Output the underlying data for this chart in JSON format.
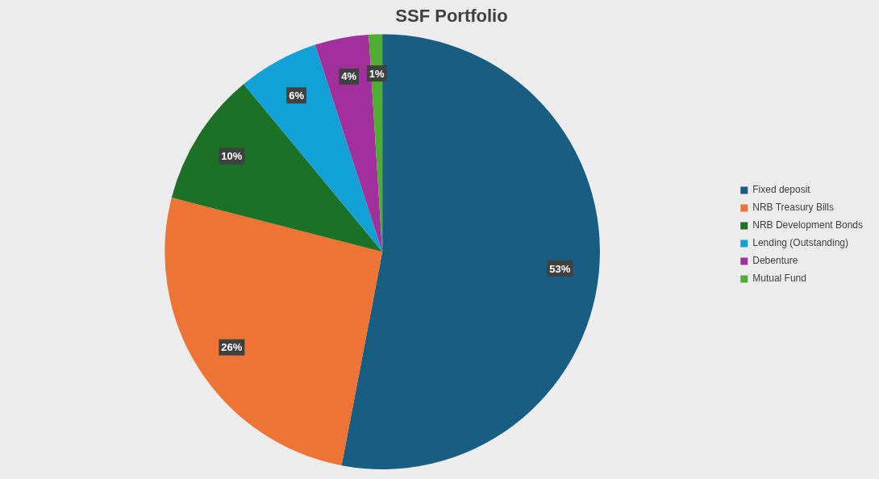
{
  "chart_data": {
    "type": "pie",
    "title": "SSF Portfolio",
    "categories": [
      "Fixed deposit",
      "NRB Treasury Bills",
      "NRB Development Bonds",
      "Lending (Outstanding)",
      "Debenture",
      "Mutual Fund"
    ],
    "values": [
      53,
      26,
      10,
      6,
      4,
      1
    ],
    "value_labels": [
      "53%",
      "26%",
      "10%",
      "6%",
      "4%",
      "1%"
    ],
    "colors": [
      "#175e82",
      "#ed7434",
      "#1b7226",
      "#12a1d6",
      "#a2309c",
      "#4fae30"
    ],
    "legend": "right"
  }
}
